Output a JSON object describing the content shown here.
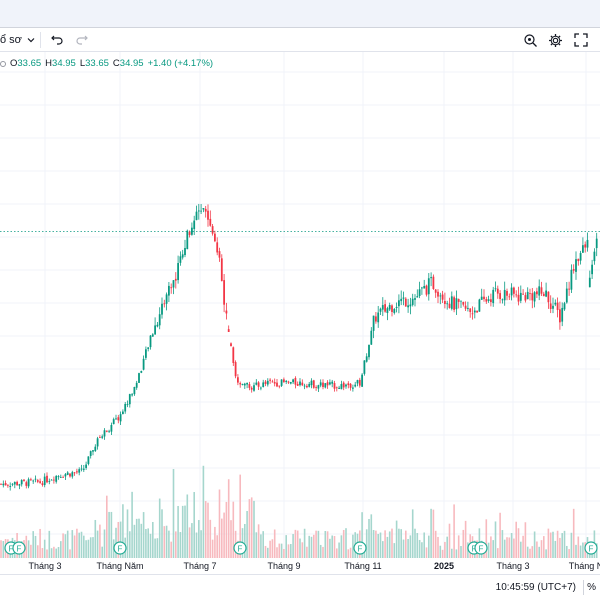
{
  "toolbar": {
    "layout_label": "ổ sơ",
    "undo_icon": "undo-icon",
    "redo_icon": "redo-icon",
    "search_settings_icon": "magnifier-settings-icon",
    "settings_icon": "gear-icon",
    "fullscreen_icon": "fullscreen-icon"
  },
  "ohlc": {
    "o_key": "O",
    "o_val": "33.65",
    "h_key": "H",
    "h_val": "34.95",
    "l_key": "L",
    "l_val": "33.65",
    "c_key": "C",
    "c_val": "34.95",
    "change": "+1.40 (+4.17%)"
  },
  "xaxis": {
    "labels": [
      "Tháng 3",
      "Tháng Năm",
      "Tháng 7",
      "Tháng 9",
      "Tháng 11",
      "2025",
      "Tháng 3",
      "Tháng N"
    ]
  },
  "footer": {
    "time": "10:45:59 (UTC+7)",
    "pct": "%"
  },
  "colors": {
    "up": "#089981",
    "down": "#f23645",
    "vol_up": "#a5d6cd",
    "vol_down": "#f7b9be",
    "priceline": "#089981"
  },
  "events": {
    "label": "F"
  },
  "chart_data": {
    "type": "candlestick",
    "close_anchors": [
      [
        0,
        13.3
      ],
      [
        40,
        13.5
      ],
      [
        60,
        14.3
      ],
      [
        82,
        14.6
      ],
      [
        100,
        18.3
      ],
      [
        120,
        20.5
      ],
      [
        135,
        23.6
      ],
      [
        150,
        28.5
      ],
      [
        165,
        33.0
      ],
      [
        178,
        36.0
      ],
      [
        190,
        40.6
      ],
      [
        200,
        42.0
      ],
      [
        210,
        41.5
      ],
      [
        218,
        38.0
      ],
      [
        225,
        32.0
      ],
      [
        235,
        24.5
      ],
      [
        250,
        23.5
      ],
      [
        270,
        24.0
      ],
      [
        300,
        24.0
      ],
      [
        320,
        23.8
      ],
      [
        340,
        23.7
      ],
      [
        360,
        24.0
      ],
      [
        375,
        31.0
      ],
      [
        395,
        32.5
      ],
      [
        415,
        33.0
      ],
      [
        432,
        34.6
      ],
      [
        450,
        32.5
      ],
      [
        470,
        31.5
      ],
      [
        495,
        33.5
      ],
      [
        520,
        33.2
      ],
      [
        545,
        33.5
      ],
      [
        560,
        31.0
      ],
      [
        575,
        37.0
      ],
      [
        590,
        39.0
      ],
      [
        598,
        40.0
      ]
    ]
  }
}
